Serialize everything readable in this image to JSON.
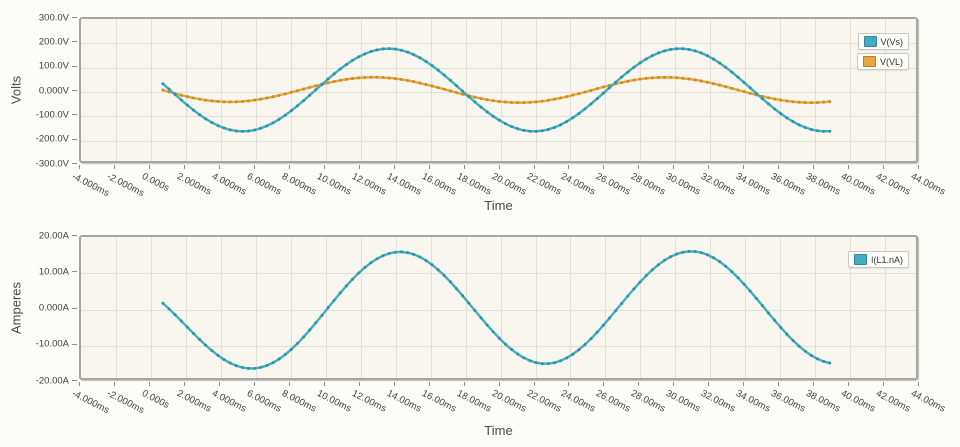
{
  "page": {
    "background": "#fcfcf9"
  },
  "styles": {
    "plot_bg": "#f8f6ee",
    "grid_color": "#e1dfd7",
    "frame_color": "#a6a6a0",
    "tick_label_color": "#3e3e3e",
    "axis_title_color": "#4a4a4a",
    "accent_teal": "#45acc0",
    "accent_orange": "#e8a53c"
  },
  "chart_data": [
    {
      "type": "line",
      "title": "",
      "ylabel": "Volts",
      "xlabel": "Time",
      "xlim": [
        -4,
        44
      ],
      "ylim": [
        -300,
        300
      ],
      "grid": true,
      "legend_position": "top-right",
      "x_tick_values": [
        -4,
        -2,
        0,
        2,
        4,
        6,
        8,
        10,
        12,
        14,
        16,
        18,
        20,
        22,
        24,
        26,
        28,
        30,
        32,
        34,
        36,
        38,
        40,
        42,
        44
      ],
      "x_tick_labels": [
        "-4.000ms",
        "-2.000ms",
        "0.000s",
        "2.000ms",
        "4.000ms",
        "6.000ms",
        "8.000ms",
        "10.00ms",
        "12.00ms",
        "14.00ms",
        "16.00ms",
        "18.00ms",
        "20.00ms",
        "22.00ms",
        "24.00ms",
        "26.00ms",
        "28.00ms",
        "30.00ms",
        "32.00ms",
        "34.00ms",
        "36.00ms",
        "38.00ms",
        "40.00ms",
        "42.00ms",
        "44.00ms"
      ],
      "y_tick_values": [
        300,
        200,
        100,
        0,
        -100,
        -200,
        -300
      ],
      "y_tick_labels": [
        "300.0V",
        "200.0V",
        "100.0V",
        "0.000V",
        "-100.0V",
        "-200.0V",
        "-300.0V"
      ],
      "series": [
        {
          "name": "V(Vs)",
          "waveform": "sine",
          "color": "#45acc0",
          "marker_color": "#2b93a8",
          "amplitude": 170,
          "frequency_hz": 60,
          "phase_deg": 154,
          "transient_coef": 0,
          "transient_tau_ms": 4,
          "t_start_ms": 0.8,
          "t_end_ms": 39.1,
          "sample_step_ms": 0.35
        },
        {
          "name": "V(VL)",
          "waveform": "sine",
          "color": "#e8a53c",
          "marker_color": "#c88d24",
          "amplitude": 52,
          "frequency_hz": 60,
          "phase_deg": 172,
          "transient_coef": 9.8,
          "transient_tau_ms": 4,
          "t_start_ms": 0.8,
          "t_end_ms": 39.2,
          "sample_step_ms": 0.35
        }
      ]
    },
    {
      "type": "line",
      "title": "",
      "ylabel": "Amperes",
      "xlabel": "Time",
      "xlim": [
        -4,
        44
      ],
      "ylim": [
        -20,
        20
      ],
      "grid": true,
      "legend_position": "top-right",
      "x_tick_values": [
        -4,
        -2,
        0,
        2,
        4,
        6,
        8,
        10,
        12,
        14,
        16,
        18,
        20,
        22,
        24,
        26,
        28,
        30,
        32,
        34,
        36,
        38,
        40,
        42,
        44
      ],
      "x_tick_labels": [
        "-4.000ms",
        "-2.000ms",
        "0.000s",
        "2.000ms",
        "4.000ms",
        "6.000ms",
        "8.000ms",
        "10.00ms",
        "12.00ms",
        "14.00ms",
        "16.00ms",
        "18.00ms",
        "20.00ms",
        "22.00ms",
        "24.00ms",
        "26.00ms",
        "28.00ms",
        "30.00ms",
        "32.00ms",
        "34.00ms",
        "36.00ms",
        "38.00ms",
        "40.00ms",
        "42.00ms",
        "44.00ms"
      ],
      "y_tick_values": [
        20,
        10,
        0,
        -10,
        -20
      ],
      "y_tick_labels": [
        "20.00A",
        "10.00A",
        "0.000A",
        "-10.00A",
        "-20.00A"
      ],
      "series": [
        {
          "name": "I(L1.nA)",
          "waveform": "sine",
          "color": "#45acc0",
          "marker_color": "#2b93a8",
          "amplitude": 15.5,
          "frequency_hz": 60,
          "phase_deg": 140,
          "transient_coef": -5.9,
          "transient_tau_ms": 4,
          "t_start_ms": 0.8,
          "t_end_ms": 39.1,
          "sample_step_ms": 0.35
        }
      ]
    }
  ]
}
